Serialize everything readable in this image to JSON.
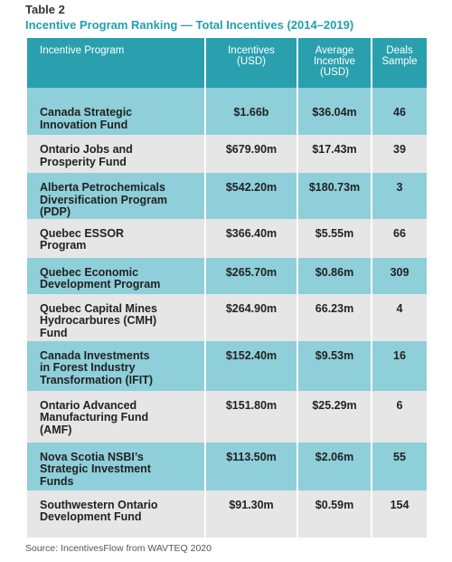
{
  "header": {
    "label": "Table 2",
    "title": "Incentive Program Ranking — Total Incentives (2014–2019)"
  },
  "table": {
    "columns": [
      [
        "Incentive Program"
      ],
      [
        "Incentives",
        "(USD)"
      ],
      [
        "Average",
        "Incentive",
        "(USD)"
      ],
      [
        "Deals",
        "Sample"
      ]
    ],
    "rows": [
      [
        [
          "Canada Strategic",
          "Innovation Fund"
        ],
        "$1.66b",
        "$36.04m",
        "46"
      ],
      [
        [
          "Ontario Jobs and",
          "Prosperity Fund"
        ],
        "$679.90m",
        "$17.43m",
        "39"
      ],
      [
        [
          "Alberta Petrochemicals",
          "Diversification Program",
          "(PDP)"
        ],
        "$542.20m",
        "$180.73m",
        "3"
      ],
      [
        [
          "Quebec ESSOR",
          "Program"
        ],
        "$366.40m",
        "$5.55m",
        "66"
      ],
      [
        [
          "Quebec Economic",
          "Development Program"
        ],
        "$265.70m",
        "$0.86m",
        "309"
      ],
      [
        [
          "Quebec Capital Mines",
          "Hydrocarbures (CMH)",
          "Fund"
        ],
        "$264.90m",
        "66.23m",
        "4"
      ],
      [
        [
          "Canada Investments",
          "in Forest Industry",
          "Transformation (IFIT)"
        ],
        "$152.40m",
        "$9.53m",
        "16"
      ],
      [
        [
          "Ontario Advanced",
          "Manufacturing Fund",
          "(AMF)"
        ],
        "$151.80m",
        "$25.29m",
        "6"
      ],
      [
        [
          "Nova Scotia NSBI’s",
          "Strategic Investment",
          "Funds"
        ],
        "$113.50m",
        "$2.06m",
        "55"
      ],
      [
        [
          "Southwestern Ontario",
          "Development Fund"
        ],
        "$91.30m",
        "$0.59m",
        "154"
      ]
    ]
  },
  "footer": {
    "source": "Source: IncentivesFlow from WAVTEQ 2020"
  }
}
